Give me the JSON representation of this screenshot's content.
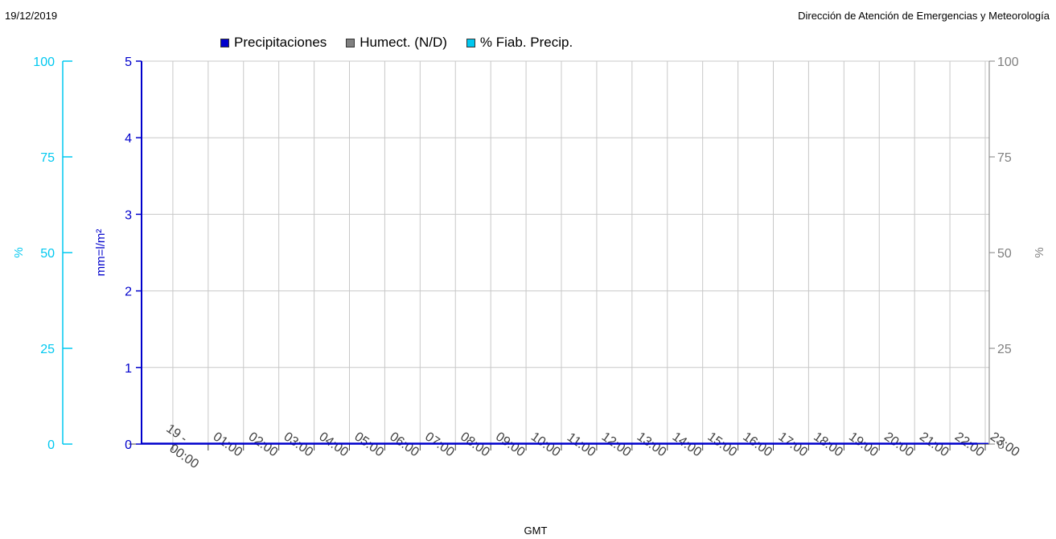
{
  "header": {
    "date": "19/12/2019",
    "organization": "Dirección de Atención de Emergencias y Meteorología"
  },
  "colors": {
    "precip": "#0000cc",
    "humect": "#808080",
    "fiab": "#00c8f0",
    "grid": "#c8c8c8",
    "right_axis": "#808080"
  },
  "chart_data": {
    "type": "bar",
    "legend": [
      "Precipitaciones",
      "Humect. (N/D)",
      "% Fiab. Precip."
    ],
    "legend_placement": "top",
    "grid": true,
    "categories": [
      "19 - 00:00",
      "01:00",
      "02:00",
      "03:00",
      "04:00",
      "05:00",
      "06:00",
      "07:00",
      "08:00",
      "09:00",
      "10:00",
      "11:00",
      "12:00",
      "13:00",
      "14:00",
      "15:00",
      "16:00",
      "17:00",
      "18:00",
      "19:00",
      "20:00",
      "21:00",
      "22:00",
      "23:00"
    ],
    "series": [
      {
        "name": "Precipitaciones",
        "axis": "left",
        "values": [
          0,
          0,
          0,
          0,
          0,
          0,
          0,
          0,
          0,
          0,
          0,
          0,
          0,
          0,
          0,
          0,
          0,
          0,
          0,
          0,
          0,
          0,
          0,
          0
        ]
      }
    ],
    "xlabel": "GMT",
    "ylabel_left": "mm=l/m²",
    "ylabel_far_left": "%",
    "ylabel_right": "%",
    "ylim_left": [
      0,
      5
    ],
    "yticks_left": [
      "0",
      "1",
      "2",
      "3",
      "4",
      "5"
    ],
    "ylim_percent": [
      0,
      100
    ],
    "yticks_percent": [
      "0",
      "25",
      "50",
      "75",
      "100"
    ]
  }
}
